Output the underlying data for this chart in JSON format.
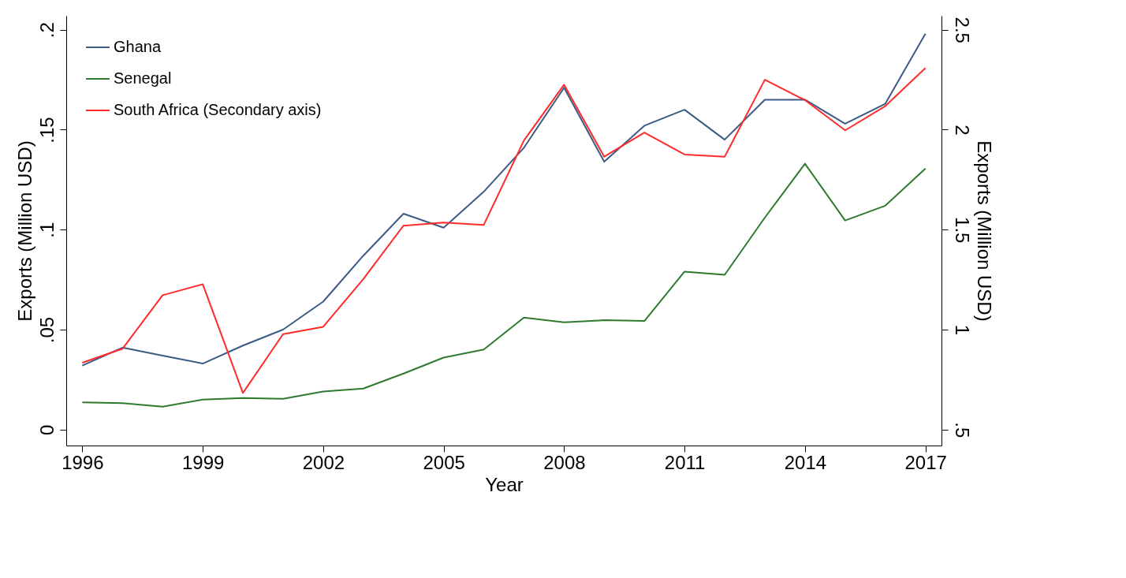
{
  "chart_data": {
    "type": "line",
    "xlabel": "Year",
    "ylabel": "Exports (Million USD)",
    "y2label": "Exports (Million USD)",
    "x": [
      1996,
      1997,
      1998,
      1999,
      2000,
      2001,
      2002,
      2003,
      2004,
      2005,
      2006,
      2007,
      2008,
      2009,
      2010,
      2011,
      2012,
      2013,
      2014,
      2015,
      2016,
      2017
    ],
    "series": [
      {
        "name": "Ghana",
        "color": "#3b5b86",
        "values": [
          0.032,
          0.041,
          0.037,
          0.033,
          0.042,
          0.05,
          0.064,
          0.087,
          0.108,
          0.101,
          0.119,
          0.141,
          0.171,
          0.134,
          0.152,
          0.16,
          0.145,
          0.165,
          0.165,
          0.153,
          0.163,
          0.198
        ]
      },
      {
        "name": "Senegal",
        "color": "#2e7a2e",
        "values": [
          0.0136,
          0.0132,
          0.0114,
          0.015,
          0.0158,
          0.0154,
          0.019,
          0.0205,
          0.028,
          0.036,
          0.04,
          0.056,
          0.0536,
          0.0547,
          0.0543,
          0.079,
          0.0774,
          0.106,
          0.133,
          0.1046,
          0.112,
          0.1306
        ]
      },
      {
        "name": "South Africa (Secondary axis)",
        "color": "#ff2a2a",
        "axis": "y2",
        "values": [
          0.834,
          0.904,
          1.172,
          1.227,
          0.683,
          0.977,
          1.014,
          1.253,
          1.52,
          1.535,
          1.524,
          1.946,
          2.225,
          1.865,
          1.986,
          1.876,
          1.865,
          2.25,
          2.148,
          1.997,
          2.118,
          2.309
        ]
      }
    ],
    "xlim": [
      1995.6,
      2017.4
    ],
    "xticks": [
      1996,
      1999,
      2002,
      2005,
      2008,
      2011,
      2014,
      2017
    ],
    "ylim": [
      -0.008,
      0.207
    ],
    "yticks": [
      0,
      {
        "value": 0.05,
        "label": ".05"
      },
      {
        "value": 0.1,
        "label": ".1"
      },
      {
        "value": 0.15,
        "label": ".15"
      },
      {
        "value": 0.2,
        "label": ".2"
      }
    ],
    "y2lim": [
      0.42,
      2.57
    ],
    "y2ticks": [
      {
        "value": 0.5,
        "label": ".5"
      },
      1,
      1.5,
      2,
      2.5
    ],
    "grid": false,
    "legend": "top left",
    "marker": "none",
    "line_style": "solid"
  }
}
